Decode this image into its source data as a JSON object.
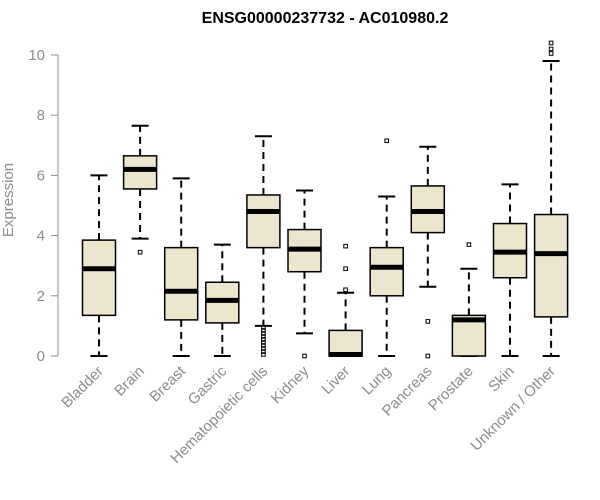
{
  "chart_data": {
    "type": "box",
    "title": "ENSG00000237732 - AC010980.2",
    "xlabel": "",
    "ylabel": "Expression",
    "ylim": [
      0,
      10
    ],
    "yticks": [
      0,
      2,
      4,
      6,
      8,
      10
    ],
    "grid": false,
    "box_fill": "#ede6cf",
    "categories": [
      "Bladder",
      "Brain",
      "Breast",
      "Gastric",
      "Hematopoietic cells",
      "Kidney",
      "Liver",
      "Lung",
      "Pancreas",
      "Prostate",
      "Skin",
      "Unknown / Other"
    ],
    "boxes": [
      {
        "whisker_low": 0.0,
        "q1": 1.35,
        "median": 2.9,
        "q3": 3.85,
        "whisker_high": 6.0,
        "outliers": []
      },
      {
        "whisker_low": 3.9,
        "q1": 5.55,
        "median": 6.2,
        "q3": 6.65,
        "whisker_high": 7.65,
        "outliers": [
          3.45
        ]
      },
      {
        "whisker_low": 0.0,
        "q1": 1.2,
        "median": 2.15,
        "q3": 3.6,
        "whisker_high": 5.9,
        "outliers": []
      },
      {
        "whisker_low": 0.0,
        "q1": 1.1,
        "median": 1.85,
        "q3": 2.45,
        "whisker_high": 3.7,
        "outliers": []
      },
      {
        "whisker_low": 1.0,
        "q1": 3.6,
        "median": 4.8,
        "q3": 5.35,
        "whisker_high": 7.3,
        "outliers": [
          0.95,
          0.85,
          0.75,
          0.65,
          0.55,
          0.45,
          0.35,
          0.25,
          0.15,
          0.05
        ]
      },
      {
        "whisker_low": 0.75,
        "q1": 2.8,
        "median": 3.55,
        "q3": 4.2,
        "whisker_high": 5.5,
        "outliers": [
          0.0
        ]
      },
      {
        "whisker_low": 0.0,
        "q1": 0.0,
        "median": 0.05,
        "q3": 0.85,
        "whisker_high": 2.1,
        "outliers": [
          2.2,
          2.9,
          3.65
        ]
      },
      {
        "whisker_low": 0.0,
        "q1": 2.0,
        "median": 2.95,
        "q3": 3.6,
        "whisker_high": 5.3,
        "outliers": [
          7.15
        ]
      },
      {
        "whisker_low": 2.3,
        "q1": 4.1,
        "median": 4.8,
        "q3": 5.65,
        "whisker_high": 6.95,
        "outliers": [
          1.15,
          0.0
        ]
      },
      {
        "whisker_low": 0.0,
        "q1": 0.0,
        "median": 1.2,
        "q3": 1.35,
        "whisker_high": 2.9,
        "outliers": [
          3.7
        ]
      },
      {
        "whisker_low": 0.0,
        "q1": 2.6,
        "median": 3.45,
        "q3": 4.4,
        "whisker_high": 5.7,
        "outliers": []
      },
      {
        "whisker_low": 0.0,
        "q1": 1.3,
        "median": 3.4,
        "q3": 4.7,
        "whisker_high": 9.8,
        "outliers": [
          10.05,
          10.2,
          10.4
        ]
      }
    ]
  }
}
